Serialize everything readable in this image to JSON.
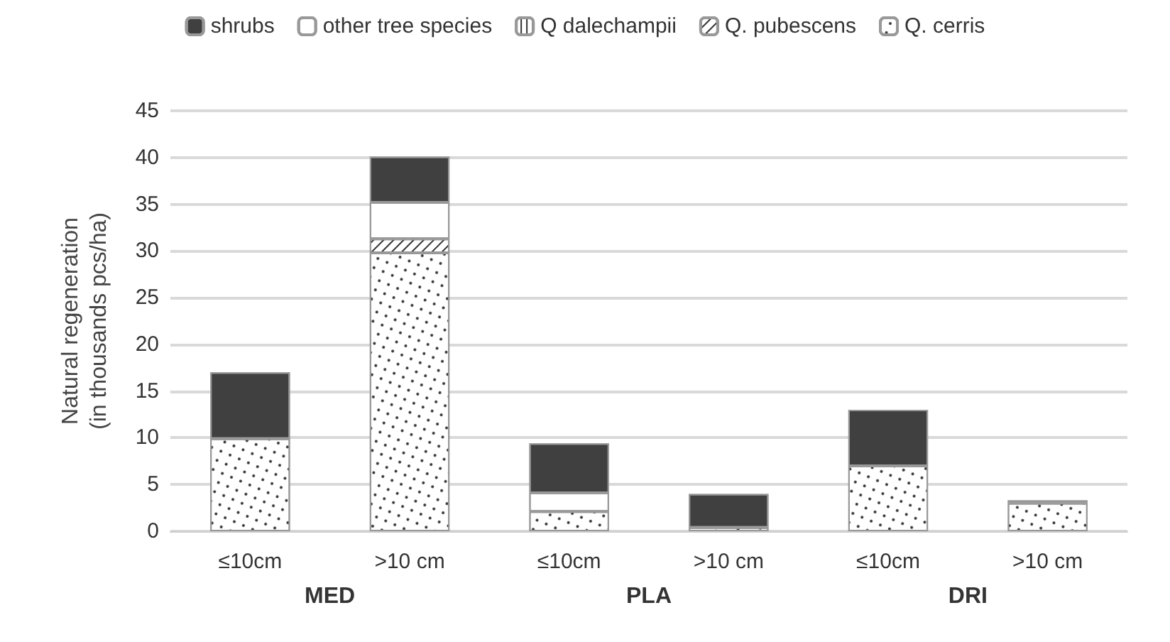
{
  "chart_data": {
    "type": "bar",
    "stacked": true,
    "categories": [
      "≤10cm",
      ">10 cm",
      "≤10cm",
      ">10 cm",
      "≤10cm",
      ">10 cm"
    ],
    "series": [
      {
        "name": "Q. cerris",
        "color": "#ffffff",
        "values": [
          9.9,
          29.8,
          2.1,
          0.4,
          7.0,
          3.0
        ]
      },
      {
        "name": "Q. pubescens",
        "color": "#ffffff",
        "values": [
          null,
          1.5,
          null,
          null,
          null,
          null
        ]
      },
      {
        "name": "Q dalechampii",
        "color": "#ffffff",
        "values": [
          null,
          null,
          null,
          null,
          null,
          null
        ]
      },
      {
        "name": "other tree species",
        "color": "#ffffff",
        "values": [
          null,
          3.9,
          2.0,
          null,
          null,
          null
        ]
      },
      {
        "name": "shrubs",
        "color": "#404040",
        "values": [
          7.1,
          4.9,
          5.3,
          3.6,
          6.0,
          0.3
        ]
      }
    ],
    "ylabel": "Natural regeneration\n(in thousands pcs/ha)",
    "ylim": [
      0,
      45
    ],
    "yticks": [
      0,
      5,
      10,
      15,
      20,
      25,
      30,
      35,
      40,
      45
    ],
    "annotations": [
      "MED",
      "PLA",
      "DRI"
    ],
    "grid": "y",
    "legend": "top"
  }
}
